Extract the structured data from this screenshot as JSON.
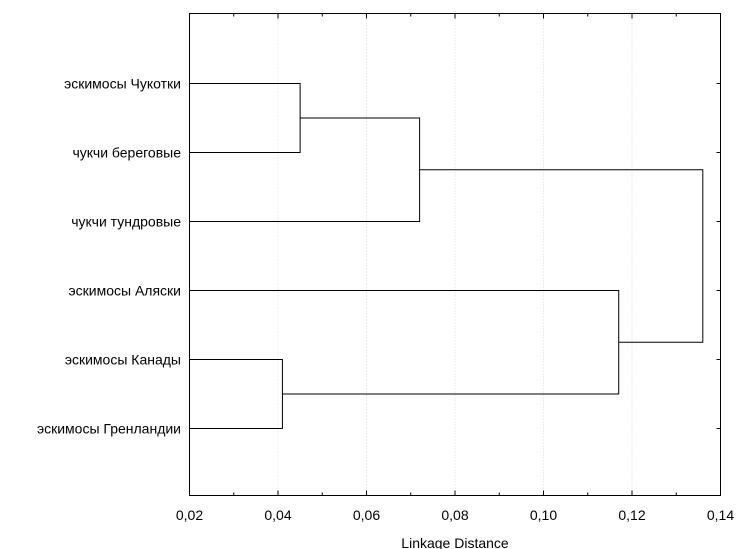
{
  "chart_data": {
    "type": "dendrogram",
    "orientation": "horizontal",
    "title": "",
    "xlabel": "Linkage Distance",
    "ylabel": "",
    "xlim": [
      0.02,
      0.14
    ],
    "x_ticks": [
      0.02,
      0.04,
      0.06,
      0.08,
      0.1,
      0.12,
      0.14
    ],
    "x_tick_labels": [
      "0,02",
      "0,04",
      "0,06",
      "0,08",
      "0,10",
      "0,12",
      "0,14"
    ],
    "grid": true,
    "leaves": [
      "эскимосы Чукотки",
      "чукчи береговые",
      "чукчи тундровые",
      "эскимосы Аляски",
      "эскимосы Канады",
      "эскимосы Гренландии"
    ],
    "merges": [
      {
        "left": "эскимосы Чукотки",
        "right": "чукчи береговые",
        "distance": 0.045
      },
      {
        "left": "эскимосы Канады",
        "right": "эскимосы Гренландии",
        "distance": 0.041
      },
      {
        "left": "merge-1",
        "right": "чукчи тундровые",
        "distance": 0.072
      },
      {
        "left": "эскимосы Аляски",
        "right": "merge-2",
        "distance": 0.117
      },
      {
        "left": "merge-3",
        "right": "merge-4",
        "distance": 0.136
      }
    ]
  }
}
